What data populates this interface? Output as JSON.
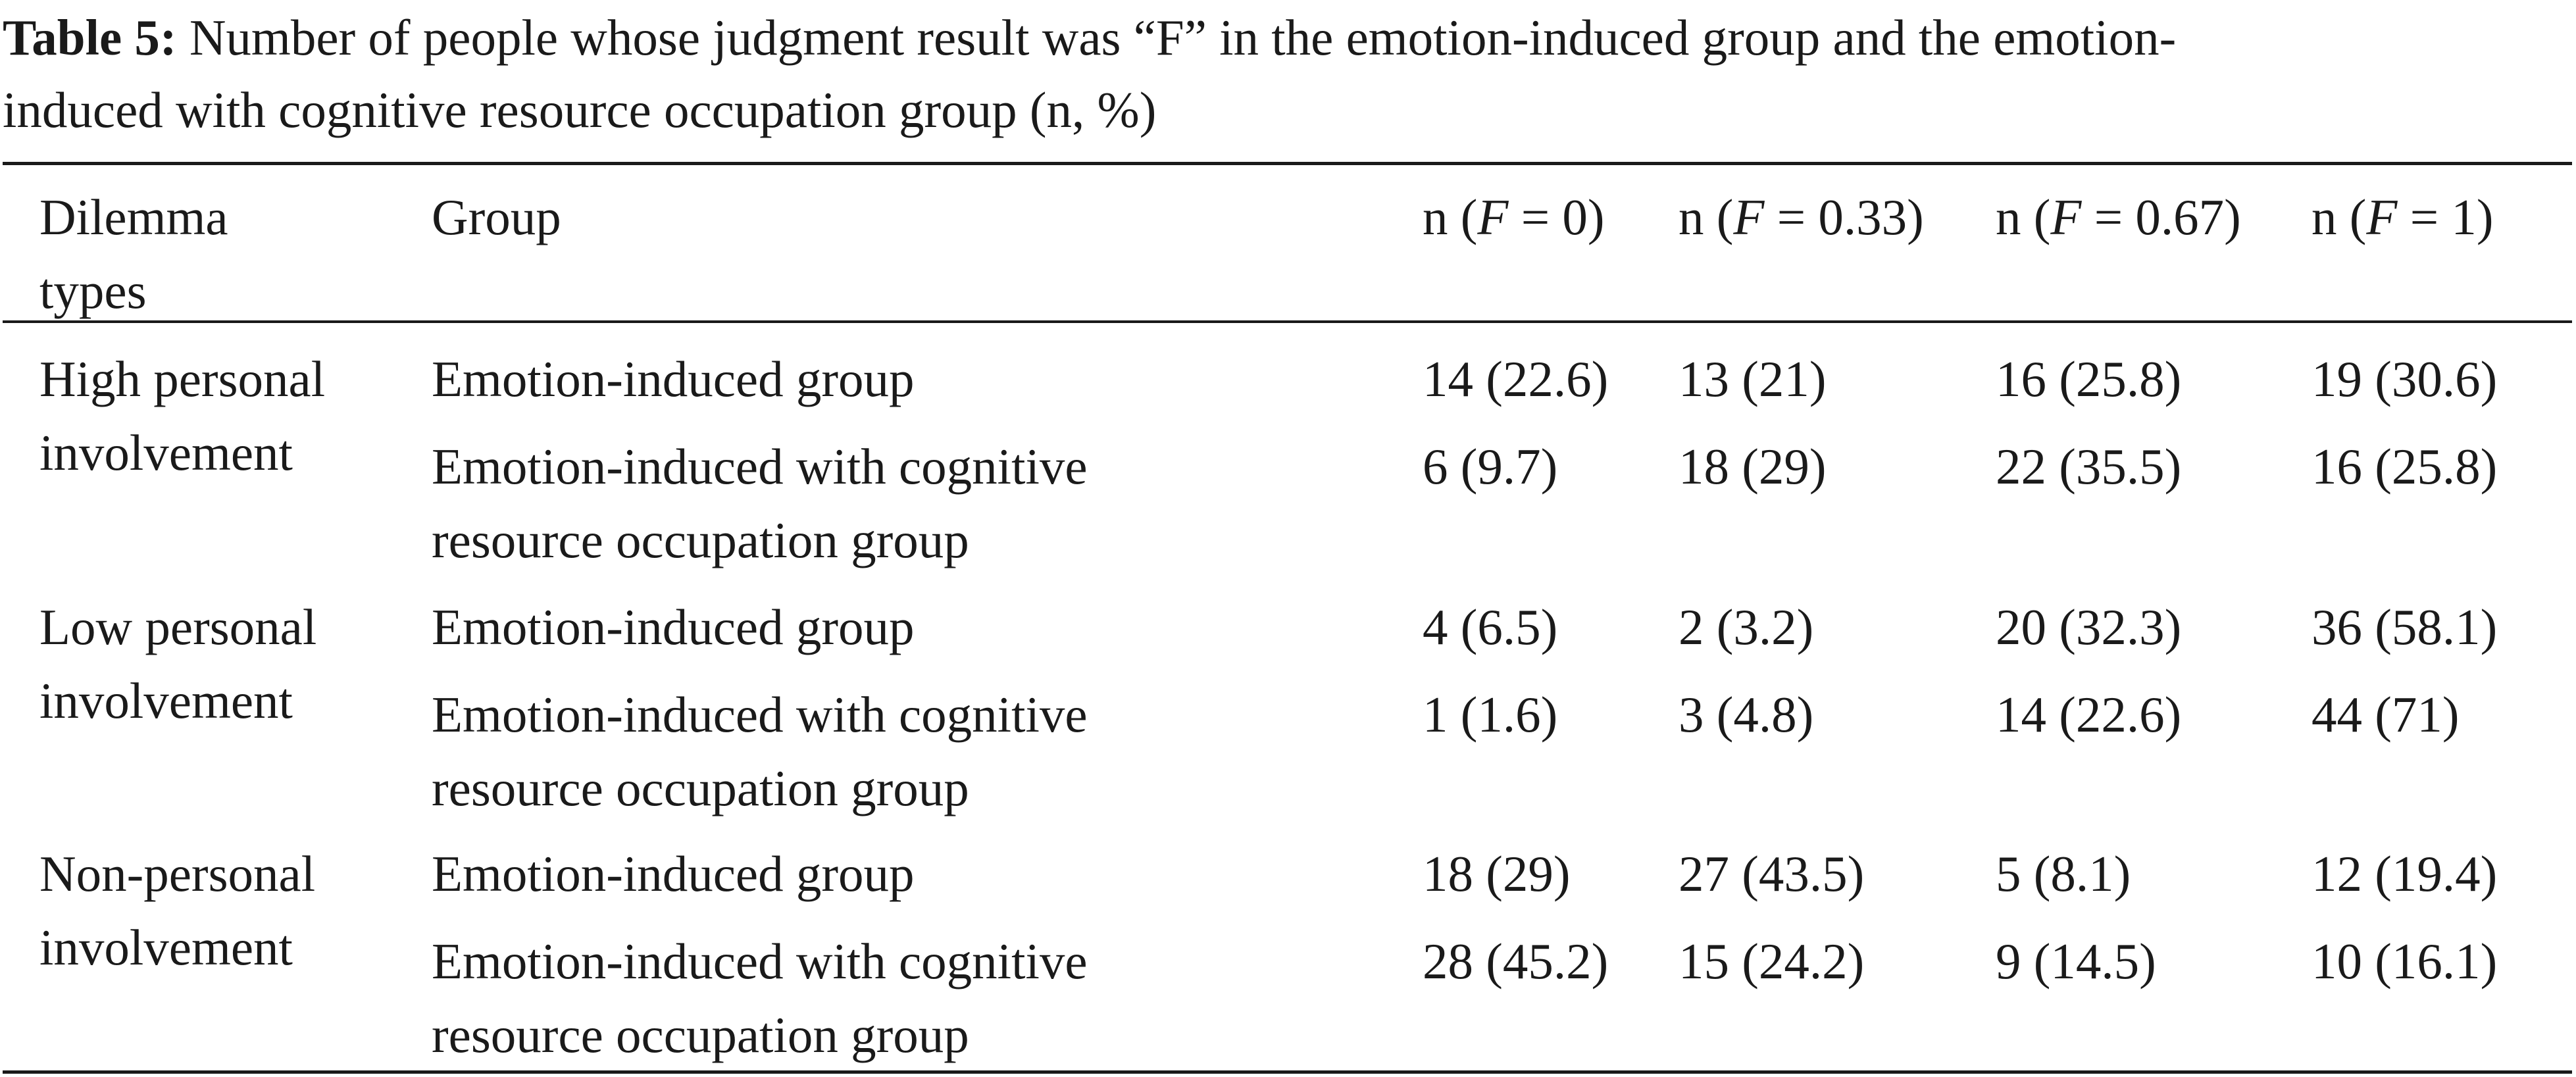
{
  "caption": {
    "label": "Table 5:",
    "line1": "Number of people whose judgment result was “F” in the emotion-induced group and the emotion-",
    "line2": "induced with cognitive resource occupation group (n, %)"
  },
  "table": {
    "headers": {
      "dilemma_line1": "Dilemma",
      "dilemma_line2": "types",
      "group": "Group",
      "f0": {
        "pre": "n (",
        "var": "F",
        "post": " = 0)"
      },
      "f033": {
        "pre": "n (",
        "var": "F",
        "post": " = 0.33)"
      },
      "f067": {
        "pre": "n (",
        "var": "F",
        "post": " = 0.67)"
      },
      "f1": {
        "pre": "n (",
        "var": "F",
        "post": " = 1)"
      }
    },
    "sections": [
      {
        "type_line1": "High personal",
        "type_line2": "involvement",
        "rows": [
          {
            "group_line1": "Emotion-induced group",
            "group_line2": "",
            "f0": "14 (22.6)",
            "f033": "13 (21)",
            "f067": "16 (25.8)",
            "f1": "19 (30.6)"
          },
          {
            "group_line1": "Emotion-induced with cognitive",
            "group_line2": "resource occupation group",
            "f0": "6 (9.7)",
            "f033": "18 (29)",
            "f067": "22 (35.5)",
            "f1": "16 (25.8)"
          }
        ]
      },
      {
        "type_line1": "Low personal",
        "type_line2": "involvement",
        "rows": [
          {
            "group_line1": "Emotion-induced group",
            "group_line2": "",
            "f0": "4 (6.5)",
            "f033": "2 (3.2)",
            "f067": "20 (32.3)",
            "f1": "36 (58.1)"
          },
          {
            "group_line1": "Emotion-induced with cognitive",
            "group_line2": "resource occupation group",
            "f0": "1 (1.6)",
            "f033": "3 (4.8)",
            "f067": "14 (22.6)",
            "f1": "44 (71)"
          }
        ]
      },
      {
        "type_line1": "Non-personal",
        "type_line2": "involvement",
        "rows": [
          {
            "group_line1": "Emotion-induced group",
            "group_line2": "",
            "f0": "18 (29)",
            "f033": "27 (43.5)",
            "f067": "5 (8.1)",
            "f1": "12 (19.4)"
          },
          {
            "group_line1": "Emotion-induced with cognitive",
            "group_line2": "resource occupation group",
            "f0": "28 (45.2)",
            "f033": "15 (24.2)",
            "f067": "9 (14.5)",
            "f1": "10 (16.1)"
          }
        ]
      }
    ]
  }
}
